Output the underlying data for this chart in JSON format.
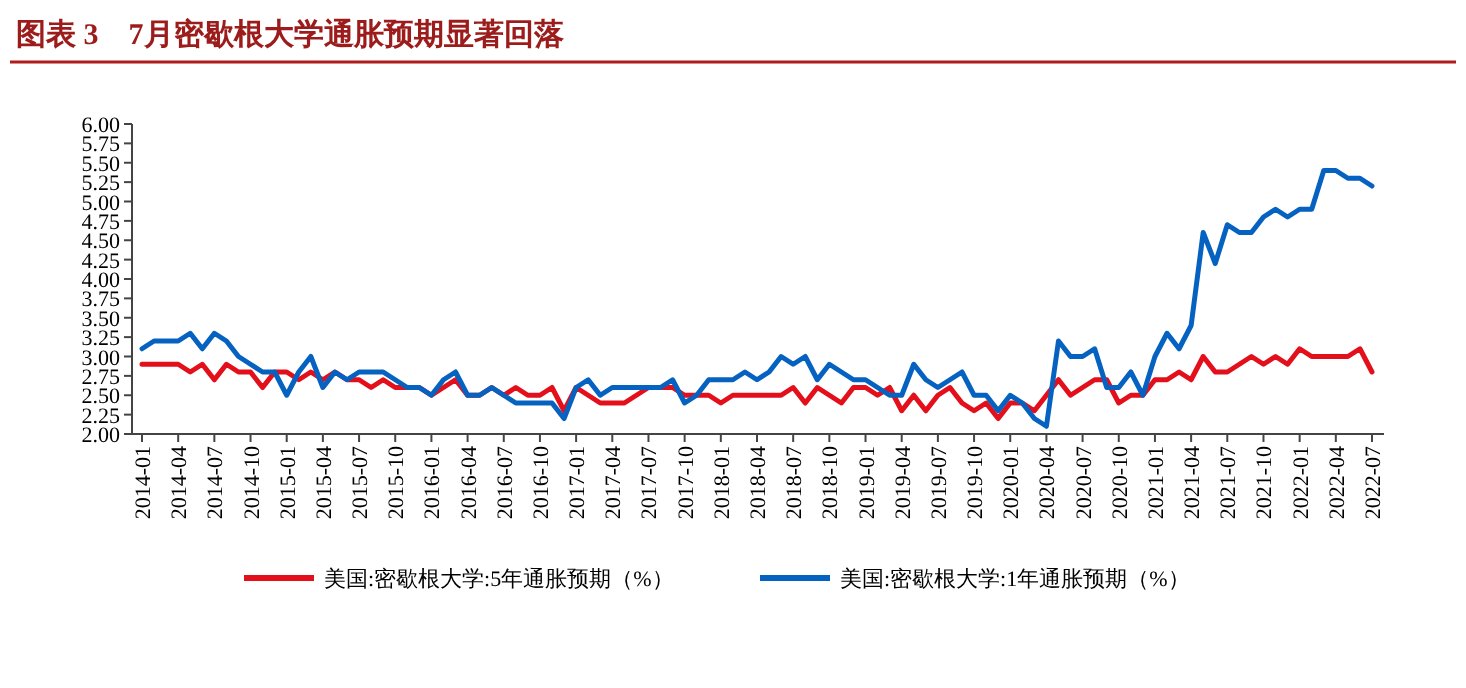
{
  "chart_data": {
    "type": "line",
    "title": "图表 3　7月密歇根大学通胀预期显著回落",
    "categories": [
      "2014-01",
      null,
      null,
      "2014-04",
      null,
      null,
      "2014-07",
      null,
      null,
      "2014-10",
      null,
      null,
      "2015-01",
      null,
      null,
      "2015-04",
      null,
      null,
      "2015-07",
      null,
      null,
      "2015-10",
      null,
      null,
      "2016-01",
      null,
      null,
      "2016-04",
      null,
      null,
      "2016-07",
      null,
      null,
      "2016-10",
      null,
      null,
      "2017-01",
      null,
      null,
      "2017-04",
      null,
      null,
      "2017-07",
      null,
      null,
      "2017-10",
      null,
      null,
      "2018-01",
      null,
      null,
      "2018-04",
      null,
      null,
      "2018-07",
      null,
      null,
      "2018-10",
      null,
      null,
      "2019-01",
      null,
      null,
      "2019-04",
      null,
      null,
      "2019-07",
      null,
      null,
      "2019-10",
      null,
      null,
      "2020-01",
      null,
      null,
      "2020-04",
      null,
      null,
      "2020-07",
      null,
      null,
      "2020-10",
      null,
      null,
      "2021-01",
      null,
      null,
      "2021-04",
      null,
      null,
      "2021-07",
      null,
      null,
      "2021-10",
      null,
      null,
      "2022-01",
      null,
      null,
      "2022-04",
      null,
      null,
      "2022-07"
    ],
    "series": [
      {
        "name": "美国:密歇根大学:5年通胀预期（%）",
        "color": "#e3101c",
        "values": [
          2.9,
          2.9,
          2.9,
          2.9,
          2.8,
          2.9,
          2.7,
          2.9,
          2.8,
          2.8,
          2.6,
          2.8,
          2.8,
          2.7,
          2.8,
          2.7,
          2.8,
          2.7,
          2.7,
          2.6,
          2.7,
          2.6,
          2.6,
          2.6,
          2.5,
          2.6,
          2.7,
          2.5,
          2.5,
          2.6,
          2.5,
          2.6,
          2.5,
          2.5,
          2.6,
          2.3,
          2.6,
          2.5,
          2.4,
          2.4,
          2.4,
          2.5,
          2.6,
          2.6,
          2.6,
          2.5,
          2.5,
          2.5,
          2.4,
          2.5,
          2.5,
          2.5,
          2.5,
          2.5,
          2.6,
          2.4,
          2.6,
          2.5,
          2.4,
          2.6,
          2.6,
          2.5,
          2.6,
          2.3,
          2.5,
          2.3,
          2.5,
          2.6,
          2.4,
          2.3,
          2.4,
          2.2,
          2.4,
          2.4,
          2.3,
          2.5,
          2.7,
          2.5,
          2.6,
          2.7,
          2.7,
          2.4,
          2.5,
          2.5,
          2.7,
          2.7,
          2.8,
          2.7,
          3.0,
          2.8,
          2.8,
          2.9,
          3.0,
          2.9,
          3.0,
          2.9,
          3.1,
          3.0,
          3.0,
          3.0,
          3.0,
          3.1,
          2.8
        ]
      },
      {
        "name": "美国:密歇根大学:1年通胀预期（%）",
        "color": "#0662c0",
        "values": [
          3.1,
          3.2,
          3.2,
          3.2,
          3.3,
          3.1,
          3.3,
          3.2,
          3.0,
          2.9,
          2.8,
          2.8,
          2.5,
          2.8,
          3.0,
          2.6,
          2.8,
          2.7,
          2.8,
          2.8,
          2.8,
          2.7,
          2.6,
          2.6,
          2.5,
          2.7,
          2.8,
          2.5,
          2.5,
          2.6,
          2.5,
          2.4,
          2.4,
          2.4,
          2.4,
          2.2,
          2.6,
          2.7,
          2.5,
          2.6,
          2.6,
          2.6,
          2.6,
          2.6,
          2.7,
          2.4,
          2.5,
          2.7,
          2.7,
          2.7,
          2.8,
          2.7,
          2.8,
          3.0,
          2.9,
          3.0,
          2.7,
          2.9,
          2.8,
          2.7,
          2.7,
          2.6,
          2.5,
          2.5,
          2.9,
          2.7,
          2.6,
          2.7,
          2.8,
          2.5,
          2.5,
          2.3,
          2.5,
          2.4,
          2.2,
          2.1,
          3.2,
          3.0,
          3.0,
          3.1,
          2.6,
          2.6,
          2.8,
          2.5,
          3.0,
          3.3,
          3.1,
          3.4,
          4.6,
          4.2,
          4.7,
          4.6,
          4.6,
          4.8,
          4.9,
          4.8,
          4.9,
          4.9,
          5.4,
          5.4,
          5.3,
          5.3,
          5.2
        ]
      }
    ],
    "ylim": [
      2,
      6
    ],
    "yticks": [
      {
        "value": 2,
        "label": "2.00"
      },
      {
        "value": 2.25,
        "label": "2.25"
      },
      {
        "value": 2.5,
        "label": "2.50"
      },
      {
        "value": 2.75,
        "label": "2.75"
      },
      {
        "value": 3,
        "label": "3.00"
      },
      {
        "value": 3.25,
        "label": "3.25"
      },
      {
        "value": 3.5,
        "label": "3.50"
      },
      {
        "value": 3.75,
        "label": "3.75"
      },
      {
        "value": 4,
        "label": "4.00"
      },
      {
        "value": 4.25,
        "label": "4.25"
      },
      {
        "value": 4.5,
        "label": "4.50"
      },
      {
        "value": 4.75,
        "label": "4.75"
      },
      {
        "value": 5,
        "label": "5.00"
      },
      {
        "value": 5.25,
        "label": "5.25"
      },
      {
        "value": 5.5,
        "label": "5.50"
      },
      {
        "value": 5.75,
        "label": "5.75"
      },
      {
        "value": 6,
        "label": "6.00"
      }
    ],
    "legend": "bottom",
    "grid": false,
    "marker": "none",
    "line_style": "solid"
  }
}
